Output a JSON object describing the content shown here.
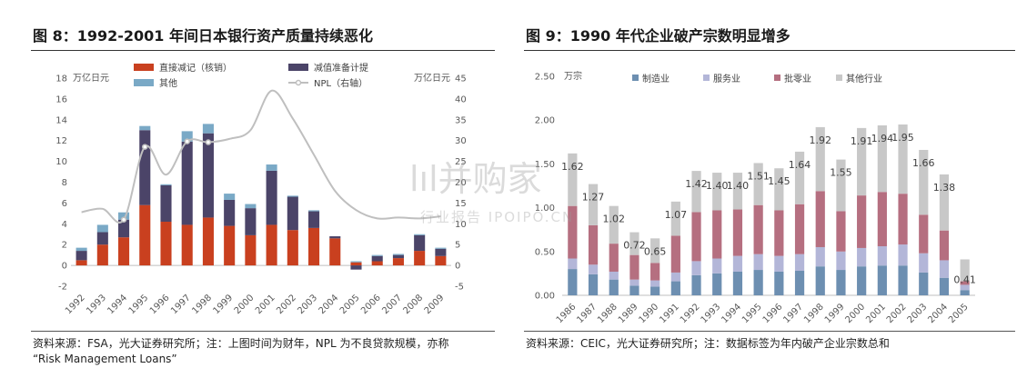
{
  "left": {
    "title": "图 8：1992-2001 年间日本银行资产质量持续恶化",
    "footer_line1": "资料来源：FSA，光大证券研究所；注：上图时间为财年，NPL 为不良贷款规模，亦称",
    "footer_line2": "“Risk Management Loans”"
  },
  "right": {
    "title": "图 9：1990 年代企业破产宗数明显增多",
    "footer_line1": "资料来源：CEIC，光大证券研究所；注：数据标签为年内破产企业宗数总和"
  },
  "watermark": {
    "main": "lıl并购家",
    "sub": "行业报告 IPOIPO.CN"
  },
  "chart_data": [
    {
      "type": "bar",
      "stacked": true,
      "categories": [
        "1992",
        "1993",
        "1994",
        "1995",
        "1996",
        "1997",
        "1998",
        "1999",
        "2000",
        "2001",
        "2002",
        "2003",
        "2004",
        "2005",
        "2006",
        "2007",
        "2008",
        "2009"
      ],
      "series": [
        {
          "name": "直接减记（核销）",
          "color": "#c9401f",
          "values": [
            0.5,
            2.0,
            2.7,
            5.8,
            4.2,
            3.9,
            4.6,
            3.8,
            2.9,
            3.9,
            3.4,
            3.6,
            2.6,
            0.3,
            0.4,
            0.7,
            1.4,
            0.9
          ]
        },
        {
          "name": "减值准备计提",
          "color": "#4b4468",
          "values": [
            0.9,
            1.2,
            1.7,
            7.2,
            3.5,
            8.0,
            8.1,
            2.5,
            2.6,
            5.2,
            3.2,
            1.6,
            0.2,
            -0.4,
            0.5,
            0.3,
            1.5,
            0.7
          ]
        },
        {
          "name": "其他",
          "color": "#7aa9c6",
          "values": [
            0.3,
            0.7,
            0.7,
            0.4,
            0.1,
            1.0,
            0.9,
            0.6,
            0.4,
            0.6,
            0.1,
            0.1,
            0.0,
            0.1,
            0.1,
            0.1,
            0.1,
            0.1
          ]
        }
      ],
      "line": {
        "name": "NPL（右轴）",
        "color": "#bfbfbf",
        "values": [
          12.8,
          13.6,
          11.0,
          28.5,
          21.8,
          29.8,
          29.6,
          30.4,
          32.5,
          42.0,
          35.3,
          26.6,
          17.9,
          13.3,
          11.3,
          11.5,
          11.3,
          11.8
        ],
        "markers": [
          false,
          false,
          true,
          true,
          false,
          true,
          true,
          false,
          false,
          false,
          false,
          false,
          false,
          false,
          false,
          false,
          false,
          false
        ]
      },
      "y_left": {
        "unit": "万亿日元",
        "range": [
          -2,
          18
        ],
        "ticks": [
          "-2",
          "0",
          "2",
          "4",
          "6",
          "8",
          "10",
          "12",
          "14",
          "16",
          "18"
        ]
      },
      "y_right": {
        "unit": "万亿日元",
        "range": [
          -5,
          45
        ],
        "ticks": [
          "-5",
          "0",
          "5",
          "10",
          "15",
          "20",
          "25",
          "30",
          "35",
          "40",
          "45"
        ]
      },
      "legend": "top"
    },
    {
      "type": "bar",
      "stacked": true,
      "categories": [
        "1986",
        "1987",
        "1988",
        "1989",
        "1990",
        "1991",
        "1992",
        "1993",
        "1994",
        "1995",
        "1996",
        "1997",
        "1998",
        "1999",
        "2000",
        "2001",
        "2002",
        "2003",
        "2004",
        "2005"
      ],
      "series": [
        {
          "name": "制造业",
          "color": "#6d8fb1",
          "values": [
            0.3,
            0.24,
            0.18,
            0.11,
            0.1,
            0.16,
            0.23,
            0.25,
            0.27,
            0.29,
            0.27,
            0.28,
            0.33,
            0.29,
            0.33,
            0.34,
            0.34,
            0.26,
            0.2,
            0.06
          ]
        },
        {
          "name": "服务业",
          "color": "#b3b6d8",
          "values": [
            0.12,
            0.11,
            0.09,
            0.07,
            0.07,
            0.1,
            0.16,
            0.17,
            0.18,
            0.18,
            0.18,
            0.19,
            0.22,
            0.21,
            0.21,
            0.22,
            0.24,
            0.22,
            0.2,
            0.06
          ]
        },
        {
          "name": "批零业",
          "color": "#b56f80",
          "values": [
            0.6,
            0.45,
            0.32,
            0.28,
            0.2,
            0.42,
            0.56,
            0.55,
            0.53,
            0.56,
            0.52,
            0.57,
            0.64,
            0.46,
            0.6,
            0.62,
            0.58,
            0.44,
            0.34,
            0.04
          ]
        },
        {
          "name": "其他行业",
          "color": "#c8c8c8",
          "values": [
            0.6,
            0.47,
            0.43,
            0.26,
            0.28,
            0.39,
            0.47,
            0.43,
            0.42,
            0.48,
            0.48,
            0.6,
            0.73,
            0.59,
            0.77,
            0.76,
            0.79,
            0.74,
            0.64,
            0.25
          ]
        }
      ],
      "totals": [
        "1.62",
        "1.27",
        "1.02",
        "0.72",
        "0.65",
        "1.07",
        "1.42",
        "1.40",
        "1.40",
        "1.51",
        "1.45",
        "1.64",
        "1.92",
        "1.55",
        "1.91",
        "1.94",
        "1.95",
        "1.66",
        "1.38",
        "0.41"
      ],
      "y": {
        "unit": "万宗",
        "range": [
          0,
          2.5
        ],
        "ticks": [
          "0.00",
          "0.50",
          "1.00",
          "1.50",
          "2.00",
          "2.50"
        ]
      },
      "legend": "top"
    }
  ]
}
